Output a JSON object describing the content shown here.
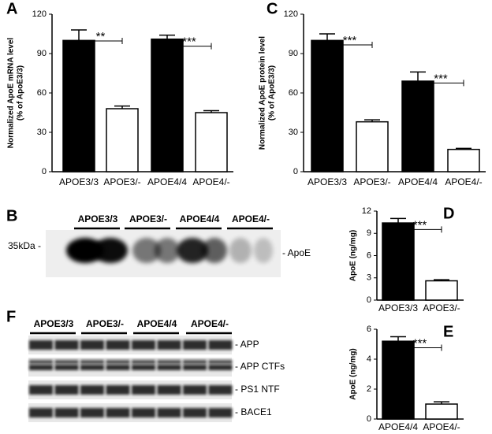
{
  "chart_data": [
    {
      "type": "bar",
      "panel": "A",
      "ylabel": [
        "Normalized ApoE mRNA level",
        "(% of ApoE3/3)"
      ],
      "categories": [
        "APOE3/3",
        "APOE3/-",
        "APOE4/4",
        "APOE4/-"
      ],
      "values": [
        100,
        48,
        101,
        45
      ],
      "errors": [
        8,
        2,
        3,
        1.5
      ],
      "colors": [
        "#000000",
        "#ffffff",
        "#000000",
        "#ffffff"
      ],
      "ylim": [
        0,
        120
      ],
      "yticks": [
        0,
        30,
        60,
        90,
        120
      ],
      "annotations": [
        "**",
        "***"
      ]
    },
    {
      "type": "bar",
      "panel": "C",
      "ylabel": [
        "Normalized ApoE protein level",
        "(% of ApoE3/3)"
      ],
      "categories": [
        "APOE3/3",
        "APOE3/-",
        "APOE4/4",
        "APOE4/-"
      ],
      "values": [
        100,
        38,
        69,
        17
      ],
      "errors": [
        5,
        1.5,
        7,
        0.8
      ],
      "colors": [
        "#000000",
        "#ffffff",
        "#000000",
        "#ffffff"
      ],
      "ylim": [
        0,
        120
      ],
      "yticks": [
        0,
        30,
        60,
        90,
        120
      ],
      "annotations": [
        "***",
        "***"
      ]
    },
    {
      "type": "bar",
      "panel": "D",
      "ylabel": [
        "ApoE (ng/mg)"
      ],
      "categories": [
        "APOE3/3",
        "APOE3/-"
      ],
      "values": [
        10.4,
        2.6
      ],
      "errors": [
        0.6,
        0.15
      ],
      "colors": [
        "#000000",
        "#ffffff"
      ],
      "ylim": [
        0,
        12
      ],
      "yticks": [
        0,
        3,
        6,
        9,
        12
      ],
      "annotations": [
        "***"
      ]
    },
    {
      "type": "bar",
      "panel": "E",
      "ylabel": [
        "ApoE (ng/mg)"
      ],
      "categories": [
        "APOE4/4",
        "APOE4/-"
      ],
      "values": [
        5.2,
        1.0
      ],
      "errors": [
        0.3,
        0.15
      ],
      "colors": [
        "#000000",
        "#ffffff"
      ],
      "ylim": [
        0,
        6
      ],
      "yticks": [
        0,
        2,
        4,
        6
      ],
      "annotations": [
        "***"
      ]
    }
  ],
  "blots": [
    {
      "panel": "B",
      "groups": [
        "APOE3/3",
        "APOE3/-",
        "APOE4/4",
        "APOE4/-"
      ],
      "marker": "35kDa -",
      "bands": [
        "- ApoE"
      ]
    },
    {
      "panel": "F",
      "groups": [
        "APOE3/3",
        "APOE3/-",
        "APOE4/4",
        "APOE4/-"
      ],
      "bands": [
        "- APP",
        "- APP CTFs",
        "- PS1 NTF",
        "- BACE1"
      ]
    }
  ]
}
